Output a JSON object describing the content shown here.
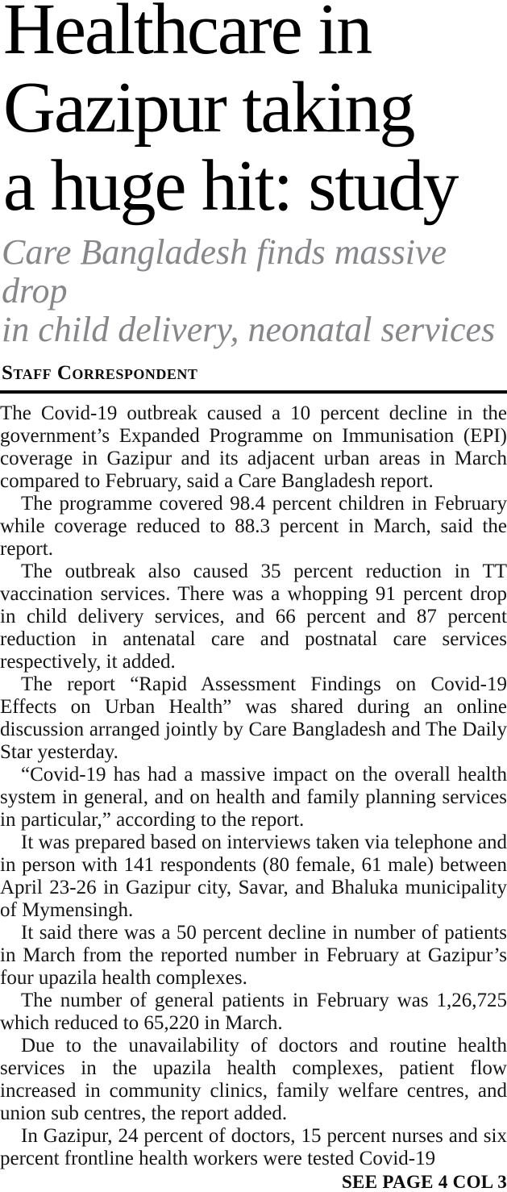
{
  "article": {
    "headline": "Healthcare in\nGazipur taking\na huge hit: study",
    "subheadline": "Care Bangladesh finds massive drop\nin child delivery, neonatal services",
    "byline": "Staff Correspondent",
    "paragraphs": [
      "The Covid-19 outbreak caused a 10 percent decline in the government’s Expanded Programme on Immunisation (EPI) coverage in Gazipur and its adjacent urban areas in March compared to February, said a Care Bangladesh report.",
      "The programme covered 98.4 percent children in February while coverage reduced to 88.3 percent in March, said the report.",
      "The outbreak also caused 35 percent reduction in TT vaccination services. There was a whopping 91 percent drop in child delivery services, and 66 percent and 87 percent reduction in antenatal care and postnatal care services respectively, it added.",
      "The report “Rapid Assessment Findings on Covid-19 Effects on Urban Health” was shared during an online discussion arranged jointly by Care Bangladesh and The Daily Star yesterday.",
      "“Covid-19 has had a massive impact on the overall health system in general, and on health and family planning services in particular,” according to the report.",
      "It was prepared based on interviews taken via telephone and in person with 141 respondents (80 female, 61 male) between April 23-26 in Gazipur city, Savar, and Bhaluka municipality of Mymensingh.",
      "It said there was a 50 percent decline in number of patients in March from the reported number in February at Gazipur’s four upazila health complexes.",
      "The number of general patients in February was 1,26,725 which reduced to 65,220 in March.",
      "Due to the unavailability of doctors and routine health services in the upazila health complexes, patient flow increased in community clinics, family welfare centres, and union sub centres, the report added.",
      "In Gazipur, 24 percent of doctors, 15 percent nurses and six percent frontline health workers were tested Covid-19"
    ],
    "continuation": "SEE PAGE 4 COL 3"
  },
  "colors": {
    "headline": "#000000",
    "subheadline": "#87878b",
    "body_text": "#151515",
    "rule": "#000000",
    "background": "#ffffff"
  }
}
